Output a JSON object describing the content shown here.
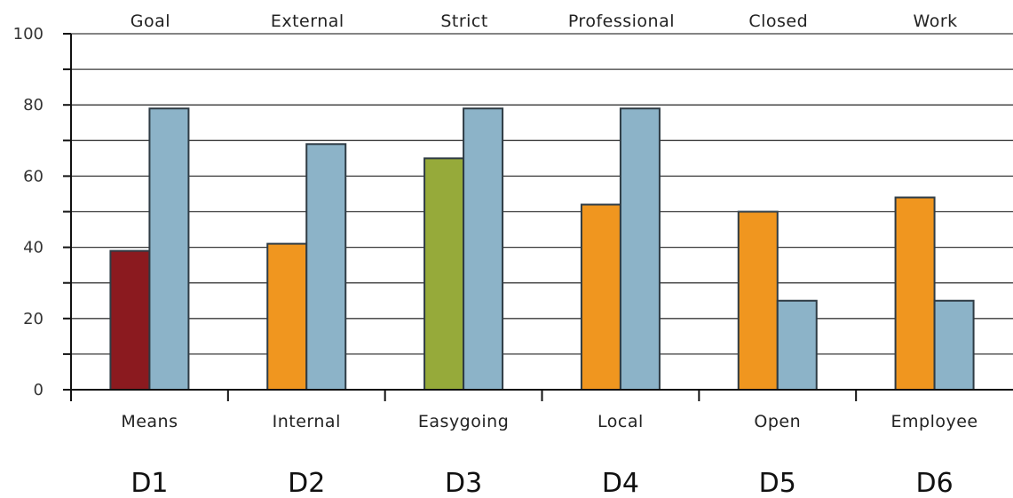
{
  "chart_data": {
    "type": "bar",
    "ylim": [
      0,
      100
    ],
    "yticks": [
      "0",
      "20",
      "40",
      "60",
      "80",
      "100"
    ],
    "grid": true,
    "groups": [
      {
        "dimension": "D1",
        "top_label": "Goal",
        "bottom_label": "Means",
        "bars": [
          {
            "value": 39,
            "color": "#8b1a1f"
          },
          {
            "value": 79,
            "color": "#8cb3c8"
          }
        ]
      },
      {
        "dimension": "D2",
        "top_label": "External",
        "bottom_label": "Internal",
        "bars": [
          {
            "value": 41,
            "color": "#f0961f"
          },
          {
            "value": 69,
            "color": "#8cb3c8"
          }
        ]
      },
      {
        "dimension": "D3",
        "top_label": "Strict",
        "bottom_label": "Easygoing",
        "bars": [
          {
            "value": 65,
            "color": "#96aa3a"
          },
          {
            "value": 79,
            "color": "#8cb3c8"
          }
        ]
      },
      {
        "dimension": "D4",
        "top_label": "Professional",
        "bottom_label": "Local",
        "bars": [
          {
            "value": 52,
            "color": "#f0961f"
          },
          {
            "value": 79,
            "color": "#8cb3c8"
          }
        ]
      },
      {
        "dimension": "D5",
        "top_label": "Closed",
        "bottom_label": "Open",
        "bars": [
          {
            "value": 50,
            "color": "#f0961f"
          },
          {
            "value": 25,
            "color": "#8cb3c8"
          }
        ]
      },
      {
        "dimension": "D6",
        "top_label": "Work",
        "bottom_label": "Employee",
        "bars": [
          {
            "value": 54,
            "color": "#f0961f"
          },
          {
            "value": 25,
            "color": "#8cb3c8"
          }
        ]
      }
    ]
  }
}
